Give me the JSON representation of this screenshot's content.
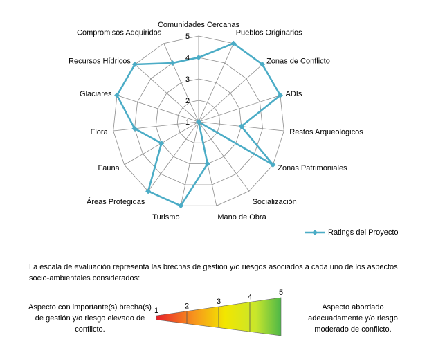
{
  "chart_data": {
    "type": "radar",
    "categories": [
      "Comunidades Cercanas",
      "Pueblos Originarios",
      "Zonas de Conflicto",
      "ADIs",
      "Restos Arqueológicos",
      "Zonas Patrimoniales",
      "Socialización",
      "Mano de Obra",
      "Turismo",
      "Áreas Protegidas",
      "Fauna",
      "Flora",
      "Glaciares",
      "Recursos Hídricos",
      "Compromisos Adquiridos"
    ],
    "series": [
      {
        "name": "Ratings del Proyecto",
        "color": "#4bacc6",
        "values": [
          4,
          5,
          5,
          5,
          3,
          5,
          1,
          3,
          5,
          5,
          3,
          4,
          5,
          5,
          4
        ]
      }
    ],
    "rlim": [
      1,
      5
    ],
    "ring_ticks": [
      "1",
      "2",
      "3",
      "4",
      "5"
    ],
    "grid_color": "#8c8c8c"
  },
  "legend": {
    "label": "Ratings del Proyecto"
  },
  "description": "La escala  de evaluación representa las brechas de gestión y/o riesgos asociados a cada uno de los aspectos socio-ambientales considerados:",
  "scale": {
    "labels": [
      "1",
      "2",
      "3",
      "4",
      "5"
    ],
    "colors": [
      "#e8202a",
      "#f7941d",
      "#f2e600",
      "#c8e62c",
      "#4cb748"
    ],
    "left_note": "Aspecto con importante(s) brecha(s) de gestión y/o riesgo elevado de conflicto.",
    "right_note": "Aspecto abordado adecuadamente y/o riesgo moderado de conflicto."
  }
}
